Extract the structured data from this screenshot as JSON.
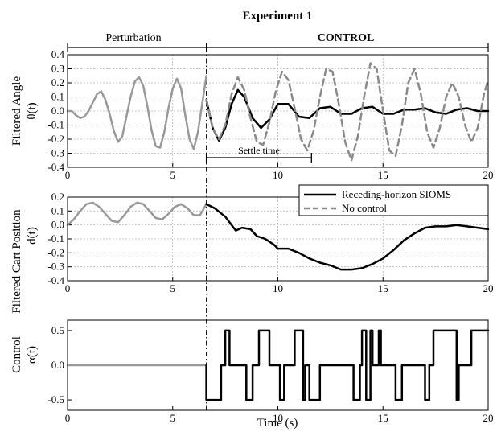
{
  "chart_data": {
    "title": "Experiment 1",
    "type": "line",
    "phases": {
      "perturbation_label": "Perturbation",
      "control_label": "CONTROL",
      "control_start": 6.6,
      "end": 20
    },
    "annotation": {
      "label": "Settle time",
      "x_start": 6.6,
      "x_end": 11.6,
      "panel": 0
    },
    "xlabel": "Time (s)",
    "xlim": [
      0,
      20
    ],
    "xticks": [
      0,
      5,
      10,
      15,
      20
    ],
    "legend": {
      "placement": "top-right of middle panel",
      "entries": [
        "Receding-horizon SIOMS",
        "No control"
      ]
    },
    "colors": {
      "perturbation": "#999999",
      "controlled": "#000000",
      "no_control": "#8a8a8a"
    },
    "panels": [
      {
        "ylabel": "Filtered Angle",
        "ylabel2": "θ(t)",
        "ylim": [
          -0.4,
          0.4
        ],
        "yticks": [
          -0.4,
          -0.3,
          -0.2,
          -0.1,
          0.0,
          0.1,
          0.2,
          0.3,
          0.4
        ],
        "grid": true,
        "series": [
          {
            "name": "Perturbation",
            "style": "perturbation",
            "x": [
              0,
              0.2,
              0.4,
              0.6,
              0.8,
              1,
              1.2,
              1.4,
              1.6,
              1.8,
              2,
              2.2,
              2.4,
              2.6,
              2.8,
              3,
              3.2,
              3.4,
              3.6,
              3.8,
              4,
              4.2,
              4.4,
              4.6,
              4.8,
              5,
              5.2,
              5.4,
              5.6,
              5.8,
              6,
              6.2,
              6.4,
              6.6
            ],
            "y": [
              0,
              0,
              -0.03,
              -0.05,
              -0.04,
              0,
              0.06,
              0.12,
              0.14,
              0.08,
              -0.02,
              -0.14,
              -0.22,
              -0.18,
              -0.04,
              0.1,
              0.21,
              0.24,
              0.18,
              0.03,
              -0.14,
              -0.25,
              -0.26,
              -0.15,
              0.02,
              0.16,
              0.23,
              0.16,
              -0.03,
              -0.2,
              -0.27,
              -0.15,
              0.05,
              0.25
            ]
          },
          {
            "name": "Receding-horizon SIOMS",
            "style": "controlled",
            "x": [
              6.6,
              6.9,
              7.2,
              7.5,
              7.8,
              8.1,
              8.4,
              8.8,
              9.2,
              9.6,
              10.0,
              10.5,
              11.0,
              11.5,
              12.0,
              12.5,
              13.0,
              13.5,
              14.0,
              14.5,
              15.0,
              15.5,
              16.0,
              16.5,
              17.0,
              17.5,
              18.0,
              18.5,
              19.0,
              19.5,
              20.0
            ],
            "y": [
              0.08,
              -0.12,
              -0.21,
              -0.12,
              0.05,
              0.15,
              0.1,
              -0.05,
              -0.12,
              -0.06,
              0.05,
              0.05,
              -0.04,
              -0.05,
              0.02,
              0.03,
              -0.02,
              -0.02,
              0.02,
              0.03,
              -0.02,
              -0.02,
              0.01,
              0.01,
              0.02,
              -0.01,
              -0.02,
              0.01,
              0.02,
              0.0,
              0.0
            ]
          },
          {
            "name": "No control",
            "style": "no_control",
            "x": [
              6.6,
              6.9,
              7.2,
              7.5,
              7.8,
              8.1,
              8.4,
              8.7,
              9.0,
              9.3,
              9.6,
              9.9,
              10.2,
              10.5,
              10.8,
              11.1,
              11.4,
              11.7,
              12.0,
              12.3,
              12.6,
              12.9,
              13.2,
              13.5,
              13.8,
              14.1,
              14.4,
              14.7,
              15.0,
              15.3,
              15.6,
              15.9,
              16.2,
              16.5,
              16.8,
              17.1,
              17.4,
              17.7,
              18.0,
              18.3,
              18.6,
              18.9,
              19.2,
              19.5,
              19.8,
              20.0
            ],
            "y": [
              0.08,
              -0.12,
              -0.2,
              -0.1,
              0.12,
              0.24,
              0.15,
              -0.05,
              -0.22,
              -0.24,
              -0.08,
              0.14,
              0.28,
              0.22,
              0.02,
              -0.2,
              -0.28,
              -0.14,
              0.1,
              0.3,
              0.28,
              0.05,
              -0.22,
              -0.35,
              -0.18,
              0.1,
              0.34,
              0.3,
              0.0,
              -0.28,
              -0.32,
              -0.1,
              0.2,
              0.3,
              0.12,
              -0.15,
              -0.26,
              -0.12,
              0.1,
              0.2,
              0.1,
              -0.1,
              -0.22,
              -0.12,
              0.12,
              0.22
            ]
          }
        ]
      },
      {
        "ylabel": "Filtered Cart Position",
        "ylabel2": "d(t)",
        "ylim": [
          -0.4,
          0.2
        ],
        "yticks": [
          -0.4,
          -0.3,
          -0.2,
          -0.1,
          0.0,
          0.1,
          0.2
        ],
        "grid": true,
        "series": [
          {
            "name": "Perturbation",
            "style": "perturbation",
            "x": [
              0,
              0.3,
              0.6,
              0.9,
              1.2,
              1.5,
              1.8,
              2.1,
              2.4,
              2.7,
              3.0,
              3.3,
              3.6,
              3.9,
              4.2,
              4.5,
              4.8,
              5.1,
              5.4,
              5.7,
              6.0,
              6.3,
              6.6
            ],
            "y": [
              0,
              0.04,
              0.1,
              0.15,
              0.16,
              0.13,
              0.08,
              0.03,
              0.02,
              0.07,
              0.13,
              0.16,
              0.15,
              0.1,
              0.05,
              0.04,
              0.08,
              0.13,
              0.15,
              0.12,
              0.07,
              0.07,
              0.15
            ]
          },
          {
            "name": "Receding-horizon SIOMS",
            "style": "controlled",
            "x": [
              6.6,
              7.0,
              7.5,
              8.0,
              8.3,
              8.7,
              9.0,
              9.4,
              9.8,
              10.0,
              10.5,
              11.0,
              11.5,
              12.0,
              12.5,
              13.0,
              13.5,
              14.0,
              14.5,
              15.0,
              15.5,
              16.0,
              16.5,
              17.0,
              17.5,
              18.0,
              18.5,
              19.0,
              19.5,
              20.0
            ],
            "y": [
              0.15,
              0.12,
              0.06,
              -0.04,
              -0.02,
              -0.03,
              -0.08,
              -0.1,
              -0.14,
              -0.17,
              -0.17,
              -0.2,
              -0.24,
              -0.27,
              -0.29,
              -0.32,
              -0.32,
              -0.31,
              -0.28,
              -0.24,
              -0.18,
              -0.11,
              -0.06,
              -0.02,
              -0.01,
              -0.01,
              0.0,
              -0.01,
              -0.02,
              -0.03
            ]
          }
        ]
      },
      {
        "ylabel": "Control",
        "ylabel2": "α(t)",
        "ylim": [
          -0.65,
          0.65
        ],
        "yticks": [
          -0.5,
          0.0,
          0.5
        ],
        "grid": false,
        "series": [
          {
            "name": "Perturbation",
            "style": "perturbation",
            "x": [
              0,
              6.6
            ],
            "y": [
              0,
              0
            ]
          },
          {
            "name": "Receding-horizon SIOMS",
            "style": "controlled",
            "x": [
              6.6,
              6.6,
              7.3,
              7.3,
              7.5,
              7.5,
              7.7,
              7.7,
              8.5,
              8.5,
              8.8,
              8.8,
              9.1,
              9.1,
              9.6,
              9.6,
              10.1,
              10.1,
              10.3,
              10.3,
              10.8,
              10.8,
              11.2,
              11.2,
              11.3,
              11.3,
              11.5,
              11.5,
              12.0,
              12.0,
              12.2,
              12.2,
              13.6,
              13.6,
              13.9,
              13.9,
              14.0,
              14.0,
              14.2,
              14.2,
              14.4,
              14.4,
              14.5,
              14.5,
              14.8,
              14.8,
              14.9,
              14.9,
              15.6,
              15.6,
              15.9,
              15.9,
              17.0,
              17.0,
              17.2,
              17.2,
              17.4,
              17.4,
              18.5,
              18.5,
              18.6,
              18.6,
              19.2,
              19.2,
              20.0
            ],
            "y": [
              0,
              -0.5,
              -0.5,
              0,
              0,
              0.5,
              0.5,
              0,
              0,
              -0.5,
              -0.5,
              0,
              0,
              0.5,
              0.5,
              0,
              0,
              -0.5,
              -0.5,
              0,
              0,
              0.5,
              0.5,
              -0.5,
              -0.5,
              0,
              0,
              -0.5,
              -0.5,
              0,
              0,
              0,
              0,
              -0.5,
              -0.5,
              0,
              0,
              0.5,
              0.5,
              -0.5,
              -0.5,
              0.5,
              0.5,
              0,
              0,
              0.5,
              0.5,
              0,
              0,
              -0.5,
              -0.5,
              0,
              0,
              -0.5,
              -0.5,
              0,
              0,
              0.5,
              0.5,
              -0.5,
              -0.5,
              0,
              0,
              0.5,
              0.5
            ]
          }
        ]
      }
    ]
  }
}
